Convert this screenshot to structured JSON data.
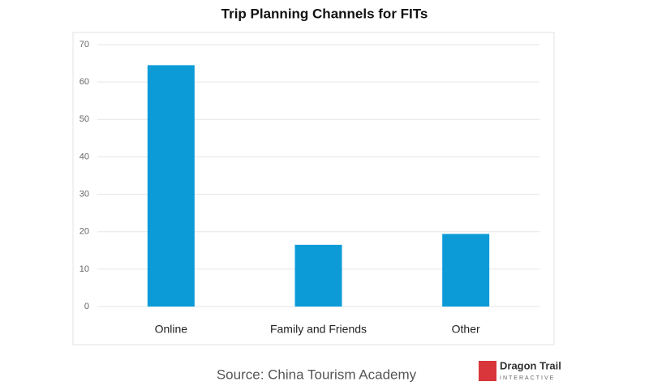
{
  "chart_data": {
    "type": "bar",
    "title": "Trip Planning Channels for FITs",
    "categories": [
      "Online",
      "Family and Friends",
      "Other"
    ],
    "values": [
      64.5,
      16.5,
      19.4
    ],
    "color": "#0d9bd8",
    "ylim": [
      0,
      70
    ],
    "yticks": [
      0,
      10,
      20,
      30,
      40,
      50,
      60,
      70
    ],
    "grid": true,
    "source": "Source: China Tourism Academy",
    "logo": {
      "name": "Dragon Trail",
      "tagline": "INTERACTIVE"
    }
  }
}
